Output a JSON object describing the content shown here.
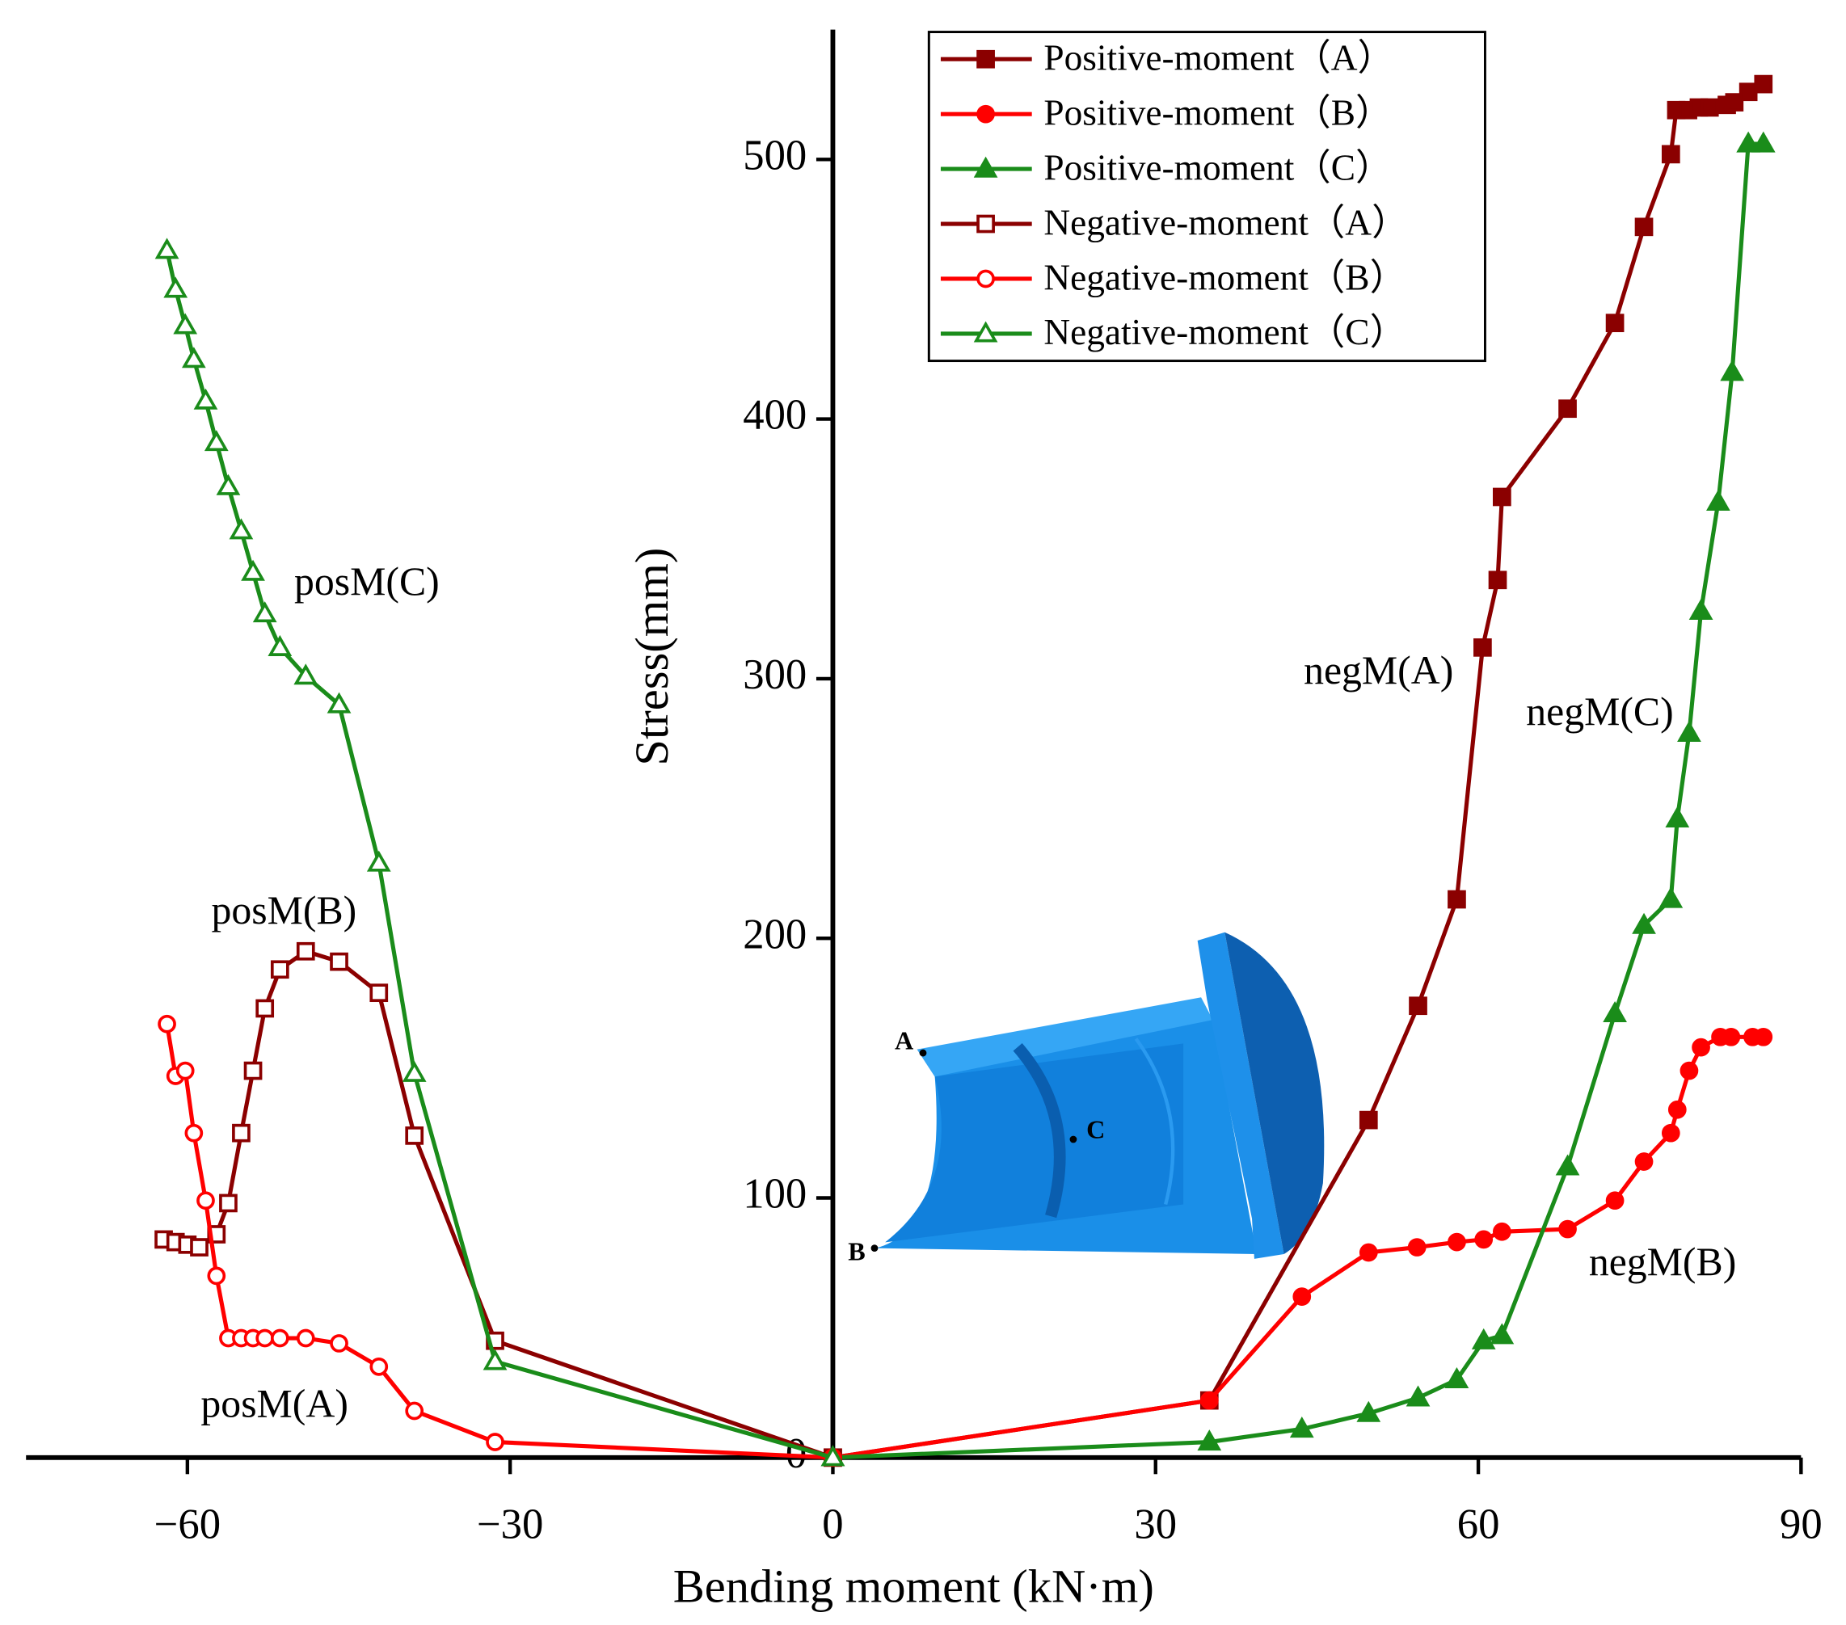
{
  "chart_data": {
    "type": "line",
    "xlabel": "Bending moment (kN·m)",
    "ylabel": "Stress(mm)",
    "xlim": [
      -75,
      90
    ],
    "ylim": [
      0,
      550
    ],
    "xticks": [
      {
        "value": -60,
        "label": "−60"
      },
      {
        "value": -30,
        "label": "−30"
      },
      0,
      30,
      60,
      90
    ],
    "yticks": [
      0,
      100,
      200,
      300,
      400,
      500
    ],
    "legend": "top-center",
    "series": [
      {
        "name": "Positive-moment（A）",
        "color": "#8b0000",
        "marker": "square",
        "filled": true,
        "x": [
          0,
          35,
          49.8,
          54.4,
          58,
          60.4,
          61.8,
          62.2,
          68.3,
          72.7,
          75.4,
          77.9,
          78.4,
          79.5,
          80.5,
          81.5,
          83.1,
          83.8,
          85.1,
          86.5
        ],
        "values": [
          0,
          22,
          130,
          174,
          215,
          312,
          338,
          370,
          404,
          437,
          474,
          502,
          519,
          519,
          520,
          520,
          521,
          522,
          526,
          529
        ]
      },
      {
        "name": "Positive-moment（B）",
        "color": "#ff0000",
        "marker": "circle",
        "filled": true,
        "x": [
          0,
          35,
          43.6,
          49.8,
          54.3,
          58,
          60.5,
          62.2,
          68.3,
          72.7,
          75.4,
          77.9,
          78.5,
          79.6,
          80.7,
          82.5,
          83.5,
          85.5,
          86.5
        ],
        "values": [
          0,
          22,
          62,
          79,
          81,
          83,
          84,
          87,
          88,
          99,
          114,
          125,
          134,
          149,
          158,
          162,
          162,
          162,
          162
        ]
      },
      {
        "name": "Positive-moment（C）",
        "color": "#1a8c1a",
        "marker": "triangle",
        "filled": true,
        "x": [
          0,
          35,
          43.6,
          49.8,
          54.4,
          58,
          60.5,
          62.2,
          68.3,
          72.7,
          75.4,
          77.9,
          78.5,
          79.6,
          80.7,
          82.3,
          83.6,
          85.1,
          86.5
        ],
        "values": [
          0,
          6,
          11,
          17,
          23,
          30,
          45,
          47,
          112,
          171,
          205,
          215,
          246,
          279,
          326,
          368,
          418,
          506,
          506
        ]
      },
      {
        "name": "Negative-moment（A）",
        "color": "#8b0000",
        "marker": "square",
        "filled": false,
        "x": [
          -62.2,
          -61.1,
          -60,
          -58.9,
          -57.3,
          -56.2,
          -55,
          -53.9,
          -52.8,
          -51.4,
          -49,
          -45.9,
          -42.2,
          -38.9,
          -31.4,
          0
        ],
        "values": [
          84,
          83,
          82,
          81,
          86,
          98,
          125,
          149,
          173,
          188,
          195,
          191,
          179,
          124,
          45,
          0
        ]
      },
      {
        "name": "Negative-moment（B）",
        "color": "#ff0000",
        "marker": "circle",
        "filled": false,
        "x": [
          -61.9,
          -61.1,
          -60.2,
          -59.4,
          -58.3,
          -57.3,
          -56.2,
          -55,
          -53.9,
          -52.8,
          -51.4,
          -49,
          -45.9,
          -42.2,
          -38.9,
          -31.4,
          0
        ],
        "values": [
          167,
          147,
          149,
          125,
          99,
          70,
          46,
          46,
          46,
          46,
          46,
          46,
          44,
          35,
          18,
          6,
          0
        ]
      },
      {
        "name": "Negative-moment（C）",
        "color": "#1a8c1a",
        "marker": "triangle",
        "filled": false,
        "x": [
          -61.9,
          -61.1,
          -60.2,
          -59.4,
          -58.3,
          -57.3,
          -56.2,
          -55,
          -53.9,
          -52.8,
          -51.4,
          -49,
          -45.9,
          -42.2,
          -38.9,
          -31.4,
          0
        ],
        "values": [
          465,
          450,
          436,
          423,
          407,
          391,
          374,
          357,
          341,
          325,
          312,
          301,
          290,
          229,
          148,
          37,
          0
        ]
      }
    ],
    "annotations": [
      "posM(C)",
      "posM(B)",
      "posM(A)",
      "negM(A)",
      "negM(C)",
      "negM(B)"
    ],
    "inset_labels": [
      "A",
      "B",
      "C"
    ]
  }
}
